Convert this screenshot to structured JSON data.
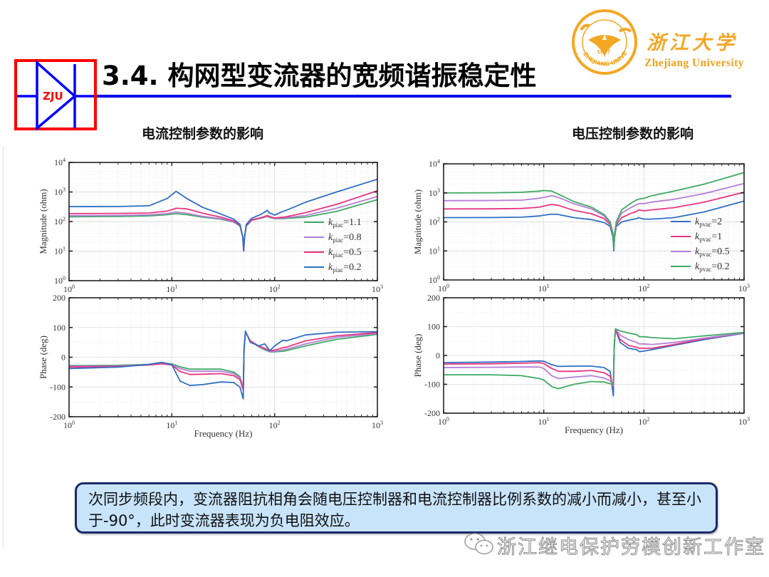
{
  "header": {
    "title": "3.4. 构网型变流器的宽频谐振稳定性",
    "logo_text": "ZJU",
    "university_cn": "浙江大学",
    "university_en": "Zhejiang University",
    "emblem_year": "1897",
    "emblem_ring_text": "ZHEJIANG UNIVERSITY",
    "colors": {
      "logo_red": "#ff0000",
      "logo_blue": "#0000ff",
      "rule_blue": "#0000ee",
      "brand_orange": "#f5a623"
    }
  },
  "panels": {
    "left": {
      "subtitle": "电流控制参数的影响"
    },
    "right": {
      "subtitle": "电压控制参数的影响"
    }
  },
  "note": {
    "text": "次同步频段内，变流器阻抗相角会随电压控制器和电流控制器比例系数的减小而减小，甚至小于-90°，此时变流器表现为负电阻效应。"
  },
  "watermark": {
    "text": "浙江继电保护劳模创新工作室",
    "icon": "wechat-icon"
  },
  "chart_data": [
    {
      "id": "left-magnitude",
      "type": "line",
      "title": "电流控制参数的影响",
      "xscale": "log",
      "yscale": "log",
      "xlabel": "",
      "ylabel": "Magnitude (ohm)",
      "xlim": [
        1,
        1000
      ],
      "ylim": [
        1,
        10000
      ],
      "xticks": [
        "10^0",
        "10^1",
        "10^2",
        "10^3"
      ],
      "yticks": [
        "10^0",
        "10^1",
        "10^2",
        "10^3",
        "10^4"
      ],
      "grid": true,
      "legend_position": "lower right",
      "x": [
        1,
        3,
        6,
        9,
        11,
        14,
        20,
        30,
        40,
        46,
        49,
        50,
        51,
        53,
        60,
        75,
        85,
        88,
        100,
        120,
        130,
        200,
        400,
        1000
      ],
      "series": [
        {
          "name": "kpiac=1.1",
          "label_sub": "piac",
          "label_val": "=1.1",
          "color": "#3daa64",
          "values": [
            145,
            148,
            155,
            170,
            185,
            170,
            140,
            120,
            95,
            70,
            30,
            12,
            30,
            70,
            110,
            130,
            150,
            140,
            125,
            125,
            128,
            140,
            220,
            550
          ]
        },
        {
          "name": "kpiac=0.8",
          "label_sub": "piac",
          "label_val": "=0.8",
          "color": "#b57ed9",
          "values": [
            158,
            160,
            168,
            185,
            210,
            190,
            150,
            125,
            98,
            72,
            30,
            12,
            30,
            72,
            112,
            133,
            155,
            145,
            128,
            130,
            135,
            160,
            280,
            700
          ]
        },
        {
          "name": "kpiac=0.5",
          "label_sub": "piac",
          "label_val": "=0.5",
          "color": "#e8367f",
          "values": [
            185,
            188,
            195,
            225,
            280,
            270,
            190,
            140,
            105,
            75,
            30,
            10,
            30,
            75,
            115,
            138,
            160,
            150,
            132,
            140,
            145,
            200,
            380,
            1100
          ]
        },
        {
          "name": "kpiac=0.2",
          "label_sub": "piac",
          "label_val": "=0.2",
          "color": "#2e6fc4",
          "values": [
            320,
            322,
            340,
            600,
            1050,
            600,
            300,
            180,
            120,
            80,
            30,
            10,
            30,
            80,
            130,
            180,
            240,
            200,
            165,
            220,
            240,
            450,
            1000,
            2700
          ]
        }
      ]
    },
    {
      "id": "left-phase",
      "type": "line",
      "xscale": "log",
      "yscale": "linear",
      "xlabel": "Frequency (Hz)",
      "ylabel": "Phase (deg)",
      "xlim": [
        1,
        1000
      ],
      "ylim": [
        -200,
        200
      ],
      "xticks": [
        "10^0",
        "10^1",
        "10^2",
        "10^3"
      ],
      "yticks": [
        "-200",
        "-100",
        "0",
        "100",
        "200"
      ],
      "grid": true,
      "x": [
        1,
        3,
        6,
        8,
        10,
        12,
        15,
        20,
        30,
        40,
        46,
        49.5,
        50.5,
        52,
        58,
        70,
        80,
        90,
        100,
        120,
        130,
        200,
        400,
        1000
      ],
      "series": [
        {
          "name": "kpiac=1.1",
          "color": "#3daa64",
          "values": [
            -28,
            -27,
            -24,
            -20,
            -22,
            -32,
            -40,
            -40,
            -40,
            -50,
            -65,
            -105,
            30,
            85,
            55,
            35,
            25,
            18,
            18,
            20,
            22,
            38,
            60,
            77
          ]
        },
        {
          "name": "kpiac=0.8",
          "color": "#b57ed9",
          "values": [
            -30,
            -29,
            -25,
            -21,
            -24,
            -38,
            -47,
            -47,
            -47,
            -55,
            -70,
            -105,
            30,
            85,
            55,
            36,
            28,
            20,
            20,
            25,
            27,
            45,
            67,
            80
          ]
        },
        {
          "name": "kpiac=0.5",
          "color": "#e8367f",
          "values": [
            -33,
            -31,
            -26,
            -22,
            -26,
            -48,
            -58,
            -57,
            -55,
            -62,
            -75,
            -110,
            30,
            85,
            55,
            38,
            30,
            22,
            24,
            32,
            34,
            55,
            72,
            83
          ]
        },
        {
          "name": "kpiac=0.2",
          "color": "#2e6fc4",
          "values": [
            -38,
            -33,
            -24,
            -17,
            -25,
            -80,
            -95,
            -92,
            -83,
            -85,
            -100,
            -140,
            30,
            88,
            50,
            38,
            45,
            22,
            38,
            57,
            55,
            75,
            84,
            86
          ]
        }
      ]
    },
    {
      "id": "right-magnitude",
      "type": "line",
      "title": "电压控制参数的影响",
      "xscale": "log",
      "yscale": "log",
      "xlabel": "",
      "ylabel": "Magnitude (ohm)",
      "xlim": [
        1,
        1000
      ],
      "ylim": [
        1,
        10000
      ],
      "xticks": [
        "10^0",
        "10^1",
        "10^2",
        "10^3"
      ],
      "yticks": [
        "10^0",
        "10^1",
        "10^2",
        "10^3",
        "10^4"
      ],
      "grid": true,
      "legend_position": "lower right",
      "x": [
        1,
        3,
        6,
        9,
        10,
        12,
        14,
        20,
        30,
        40,
        46,
        49,
        50,
        51,
        53,
        60,
        75,
        85,
        88,
        100,
        120,
        200,
        400,
        1000
      ],
      "series": [
        {
          "name": "kpvac=2",
          "label_sub": "pvac",
          "label_val": "=2",
          "color": "#2e6fc4",
          "values": [
            140,
            141,
            145,
            160,
            170,
            185,
            180,
            140,
            120,
            95,
            70,
            30,
            10,
            30,
            70,
            100,
            120,
            130,
            140,
            125,
            125,
            140,
            220,
            520
          ]
        },
        {
          "name": "kpvac=1",
          "label_sub": "pvac",
          "label_val": "=1",
          "color": "#e8367f",
          "values": [
            280,
            282,
            290,
            320,
            350,
            400,
            370,
            250,
            190,
            130,
            80,
            35,
            12,
            35,
            80,
            140,
            200,
            230,
            260,
            240,
            260,
            310,
            480,
            1050
          ]
        },
        {
          "name": "kpvac=0.5",
          "label_sub": "pvac",
          "label_val": "=0.5",
          "color": "#b57ed9",
          "values": [
            540,
            545,
            560,
            650,
            700,
            800,
            700,
            420,
            280,
            160,
            90,
            38,
            12,
            38,
            90,
            200,
            320,
            400,
            420,
            430,
            480,
            600,
            950,
            2100
          ]
        },
        {
          "name": "kpvac=0.2",
          "label_sub": "pvac",
          "label_val": "=0.2",
          "color": "#3daa64",
          "values": [
            1000,
            1010,
            1050,
            1150,
            1200,
            1150,
            900,
            500,
            320,
            180,
            100,
            40,
            12,
            40,
            100,
            260,
            450,
            580,
            600,
            650,
            800,
            1150,
            2000,
            5000
          ]
        }
      ]
    },
    {
      "id": "right-phase",
      "type": "line",
      "xscale": "log",
      "yscale": "linear",
      "xlabel": "Frequency (Hz)",
      "ylabel": "Phase (deg)",
      "xlim": [
        1,
        1000
      ],
      "ylim": [
        -200,
        200
      ],
      "xticks": [
        "10^0",
        "10^1",
        "10^2",
        "10^3"
      ],
      "yticks": [
        "-200",
        "-100",
        "0",
        "100",
        "200"
      ],
      "grid": true,
      "x": [
        1,
        3,
        6,
        9,
        10,
        12,
        14,
        20,
        30,
        40,
        46,
        49.5,
        50.5,
        52,
        58,
        70,
        85,
        90,
        100,
        120,
        200,
        400,
        1000
      ],
      "series": [
        {
          "name": "kpvac=2",
          "color": "#2e6fc4",
          "values": [
            -25,
            -23,
            -21,
            -19,
            -20,
            -32,
            -38,
            -37,
            -37,
            -42,
            -55,
            -140,
            30,
            90,
            45,
            25,
            20,
            13,
            15,
            20,
            35,
            55,
            77
          ]
        },
        {
          "name": "kpvac=1",
          "color": "#e8367f",
          "values": [
            -30,
            -29,
            -27,
            -25,
            -28,
            -45,
            -55,
            -55,
            -52,
            -60,
            -72,
            -110,
            30,
            90,
            55,
            35,
            28,
            25,
            25,
            25,
            38,
            58,
            78
          ]
        },
        {
          "name": "kpvac=0.5",
          "color": "#b57ed9",
          "values": [
            -42,
            -41,
            -40,
            -40,
            -45,
            -70,
            -80,
            -75,
            -70,
            -78,
            -88,
            -105,
            30,
            92,
            70,
            55,
            45,
            40,
            40,
            38,
            45,
            60,
            78
          ]
        },
        {
          "name": "kpvac=0.2",
          "color": "#3daa64",
          "values": [
            -67,
            -67,
            -70,
            -80,
            -85,
            -108,
            -115,
            -100,
            -90,
            -92,
            -98,
            -100,
            30,
            92,
            85,
            78,
            72,
            65,
            65,
            62,
            58,
            68,
            80
          ]
        }
      ]
    }
  ]
}
